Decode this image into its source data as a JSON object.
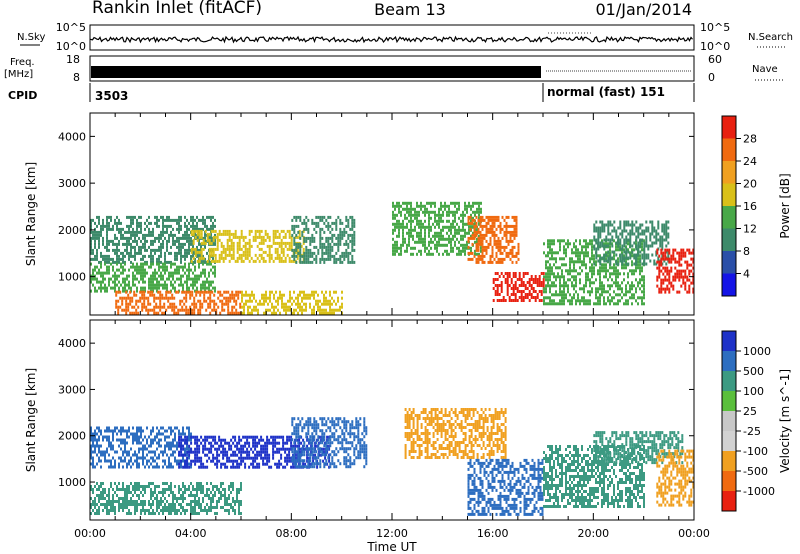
{
  "header": {
    "title": "Rankin Inlet (fitACF)",
    "beam": "Beam 13",
    "date": "01/Jan/2014"
  },
  "status_panels": {
    "nsky_label": "N.Sky",
    "nsearch_label": "N.Search",
    "noise_ticks": [
      "10^5",
      "10^0"
    ],
    "freq_label": "Freq.",
    "freq_unit": "[MHz]",
    "freq_ticks": [
      "18",
      "8"
    ],
    "nave_label": "Nave",
    "nave_ticks": [
      "60",
      "0"
    ],
    "cpid_label": "CPID",
    "cpid_segments": [
      {
        "label": "3503",
        "start_hour": 0,
        "end_hour": 18
      },
      {
        "label": "normal (fast) 151",
        "start_hour": 18,
        "end_hour": 24
      }
    ]
  },
  "colors": {
    "power_scale": [
      "#1414e6",
      "#2a4fa8",
      "#3d8a6a",
      "#48a848",
      "#d9c019",
      "#f0a020",
      "#f06a10",
      "#e82010"
    ],
    "velocity_scale": [
      "#1e32c8",
      "#2d6ec0",
      "#3c9a82",
      "#5abf3c",
      "#c8c8c8",
      "#d2d2d2",
      "#f0a020",
      "#f06a10",
      "#e82010"
    ]
  },
  "chart_data": [
    {
      "type": "heatmap",
      "panel": "power",
      "xlabel": "Time UT",
      "ylabel": "Slant Range [km]",
      "x_ticks": [
        "00:00",
        "04:00",
        "08:00",
        "12:00",
        "16:00",
        "20:00",
        "00:00"
      ],
      "xlim_hours": [
        0,
        24
      ],
      "y_ticks": [
        1000,
        2000,
        3000,
        4000
      ],
      "ylim": [
        180,
        4500
      ],
      "colorbar": {
        "label": "Power [dB]",
        "ticks": [
          4,
          8,
          12,
          16,
          20,
          24,
          28
        ],
        "range": [
          0,
          30
        ]
      },
      "echo_regions": [
        {
          "t0": 0.0,
          "t1": 5.0,
          "r0": 1300,
          "r1": 2300,
          "value": 10
        },
        {
          "t0": 0.0,
          "t1": 5.0,
          "r0": 700,
          "r1": 1300,
          "value": 14
        },
        {
          "t0": 1.0,
          "t1": 6.0,
          "r0": 250,
          "r1": 700,
          "value": 26
        },
        {
          "t0": 4.0,
          "t1": 8.5,
          "r0": 1300,
          "r1": 2000,
          "value": 18
        },
        {
          "t0": 8.0,
          "t1": 10.5,
          "r0": 1300,
          "r1": 2300,
          "value": 10
        },
        {
          "t0": 6.0,
          "t1": 10.0,
          "r0": 250,
          "r1": 700,
          "value": 18
        },
        {
          "t0": 12.0,
          "t1": 15.5,
          "r0": 1500,
          "r1": 2600,
          "value": 12
        },
        {
          "t0": 15.0,
          "t1": 17.0,
          "r0": 1300,
          "r1": 2300,
          "value": 24
        },
        {
          "t0": 16.0,
          "t1": 18.0,
          "r0": 500,
          "r1": 1100,
          "value": 28
        },
        {
          "t0": 18.0,
          "t1": 22.0,
          "r0": 400,
          "r1": 1800,
          "value": 14
        },
        {
          "t0": 20.0,
          "t1": 23.0,
          "r0": 1300,
          "r1": 2200,
          "value": 10
        },
        {
          "t0": 22.5,
          "t1": 24.0,
          "r0": 700,
          "r1": 1600,
          "value": 27
        }
      ]
    },
    {
      "type": "heatmap",
      "panel": "velocity",
      "xlabel": "Time UT",
      "ylabel": "Slant Range [km]",
      "x_ticks": [
        "00:00",
        "04:00",
        "08:00",
        "12:00",
        "16:00",
        "20:00",
        "00:00"
      ],
      "xlim_hours": [
        0,
        24
      ],
      "y_ticks": [
        1000,
        2000,
        3000,
        4000
      ],
      "ylim": [
        180,
        4500
      ],
      "colorbar": {
        "label": "Velocity [m s^-1]",
        "ticks": [
          1000,
          500,
          100,
          25,
          -25,
          -100,
          -500,
          -1000
        ]
      },
      "echo_regions": [
        {
          "t0": 0.0,
          "t1": 4.0,
          "r0": 1300,
          "r1": 2200,
          "value": 500
        },
        {
          "t0": 3.5,
          "t1": 9.5,
          "r0": 1300,
          "r1": 2000,
          "value": 1000
        },
        {
          "t0": 0.0,
          "t1": 6.0,
          "r0": 300,
          "r1": 1000,
          "value": 100
        },
        {
          "t0": 8.0,
          "t1": 11.0,
          "r0": 1300,
          "r1": 2400,
          "value": 500
        },
        {
          "t0": 12.5,
          "t1": 16.5,
          "r0": 1500,
          "r1": 2600,
          "value": -200
        },
        {
          "t0": 15.0,
          "t1": 18.0,
          "r0": 300,
          "r1": 1500,
          "value": 500
        },
        {
          "t0": 18.0,
          "t1": 22.0,
          "r0": 500,
          "r1": 1800,
          "value": 100
        },
        {
          "t0": 20.0,
          "t1": 23.5,
          "r0": 1400,
          "r1": 2100,
          "value": 300
        },
        {
          "t0": 22.5,
          "t1": 24.0,
          "r0": 500,
          "r1": 1700,
          "value": -400
        }
      ]
    }
  ]
}
